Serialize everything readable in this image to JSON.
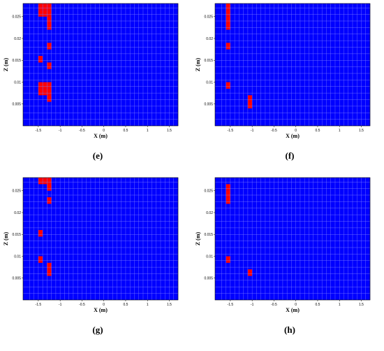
{
  "colors": {
    "background": "#0000ff",
    "cell_on": "#ff0000",
    "grid": "#8080ff"
  },
  "chart_data": [
    {
      "type": "heatmap",
      "caption": "(e)",
      "xlabel": "X (m)",
      "ylabel": "Z (m)",
      "xlim": [
        -1.85,
        1.7
      ],
      "ylim": [
        0,
        0.028
      ],
      "xticks": [
        -1.5,
        -1,
        -0.5,
        0,
        0.5,
        1,
        1.5
      ],
      "xtick_labels": [
        "-1.5",
        "-1",
        "-0.5",
        "0",
        "0.5",
        "1",
        "1.5"
      ],
      "yticks": [
        0.005,
        0.01,
        0.015,
        0.02,
        0.025
      ],
      "ytick_labels": [
        "0.005",
        "0.01",
        "0.015",
        "0.02",
        "0.025"
      ],
      "grid": true,
      "cell_width": 0.1,
      "cell_height": 0.0015,
      "cells": [
        [
          -1.5,
          0.0265
        ],
        [
          -1.4,
          0.0265
        ],
        [
          -1.3,
          0.0265
        ],
        [
          -1.5,
          0.025
        ],
        [
          -1.4,
          0.025
        ],
        [
          -1.3,
          0.025
        ],
        [
          -1.3,
          0.0235
        ],
        [
          -1.3,
          0.022
        ],
        [
          -1.3,
          0.0175
        ],
        [
          -1.5,
          0.0145
        ],
        [
          -1.3,
          0.013
        ],
        [
          -1.5,
          0.0085
        ],
        [
          -1.4,
          0.0085
        ],
        [
          -1.3,
          0.0085
        ],
        [
          -1.5,
          0.007
        ],
        [
          -1.4,
          0.007
        ],
        [
          -1.3,
          0.007
        ],
        [
          -1.3,
          0.0055
        ]
      ]
    },
    {
      "type": "heatmap",
      "caption": "(f)",
      "xlabel": "X (m)",
      "ylabel": "Z (m)",
      "xlim": [
        -1.85,
        1.7
      ],
      "ylim": [
        0,
        0.028
      ],
      "xticks": [
        -1.5,
        -1,
        -0.5,
        0,
        0.5,
        1,
        1.5
      ],
      "xtick_labels": [
        "-1.5",
        "-1",
        "-0.5",
        "0",
        "0.5",
        "1",
        "1.5"
      ],
      "yticks": [
        0.005,
        0.01,
        0.015,
        0.02,
        0.025
      ],
      "ytick_labels": [
        "0.005",
        "0.01",
        "0.015",
        "0.02",
        "0.025"
      ],
      "grid": true,
      "cell_width": 0.1,
      "cell_height": 0.0015,
      "cells": [
        [
          -1.6,
          0.0265
        ],
        [
          -1.6,
          0.025
        ],
        [
          -1.6,
          0.0235
        ],
        [
          -1.6,
          0.022
        ],
        [
          -1.6,
          0.0175
        ],
        [
          -1.6,
          0.0085
        ],
        [
          -1.1,
          0.0055
        ],
        [
          -1.1,
          0.004
        ]
      ]
    },
    {
      "type": "heatmap",
      "caption": "(g)",
      "xlabel": "X (m)",
      "ylabel": "Z (m)",
      "xlim": [
        -1.85,
        1.7
      ],
      "ylim": [
        0,
        0.028
      ],
      "xticks": [
        -1.5,
        -1,
        -0.5,
        0,
        0.5,
        1,
        1.5
      ],
      "xtick_labels": [
        "-1.5",
        "-1",
        "-0.5",
        "0",
        "0.5",
        "1",
        "1.5"
      ],
      "yticks": [
        0.005,
        0.01,
        0.015,
        0.02,
        0.025
      ],
      "ytick_labels": [
        "0.005",
        "0.01",
        "0.015",
        "0.02",
        "0.025"
      ],
      "grid": true,
      "cell_width": 0.1,
      "cell_height": 0.0015,
      "cells": [
        [
          -1.5,
          0.0265
        ],
        [
          -1.4,
          0.0265
        ],
        [
          -1.3,
          0.0265
        ],
        [
          -1.3,
          0.025
        ],
        [
          -1.3,
          0.022
        ],
        [
          -1.5,
          0.0145
        ],
        [
          -1.5,
          0.0085
        ],
        [
          -1.3,
          0.007
        ],
        [
          -1.3,
          0.0055
        ]
      ]
    },
    {
      "type": "heatmap",
      "caption": "(h)",
      "xlabel": "X (m)",
      "ylabel": "Z (m)",
      "xlim": [
        -1.85,
        1.7
      ],
      "ylim": [
        0,
        0.028
      ],
      "xticks": [
        -1.5,
        -1,
        -0.5,
        0,
        0.5,
        1,
        1.5
      ],
      "xtick_labels": [
        "-1.5",
        "-1",
        "-0.5",
        "0",
        "0.5",
        "1",
        "1.5"
      ],
      "yticks": [
        0.005,
        0.01,
        0.015,
        0.02,
        0.025
      ],
      "ytick_labels": [
        "0.005",
        "0.01",
        "0.015",
        "0.02",
        "0.025"
      ],
      "grid": true,
      "cell_width": 0.1,
      "cell_height": 0.0015,
      "cells": [
        [
          -1.6,
          0.025
        ],
        [
          -1.6,
          0.0235
        ],
        [
          -1.6,
          0.022
        ],
        [
          -1.6,
          0.0085
        ],
        [
          -1.1,
          0.0055
        ]
      ]
    }
  ]
}
